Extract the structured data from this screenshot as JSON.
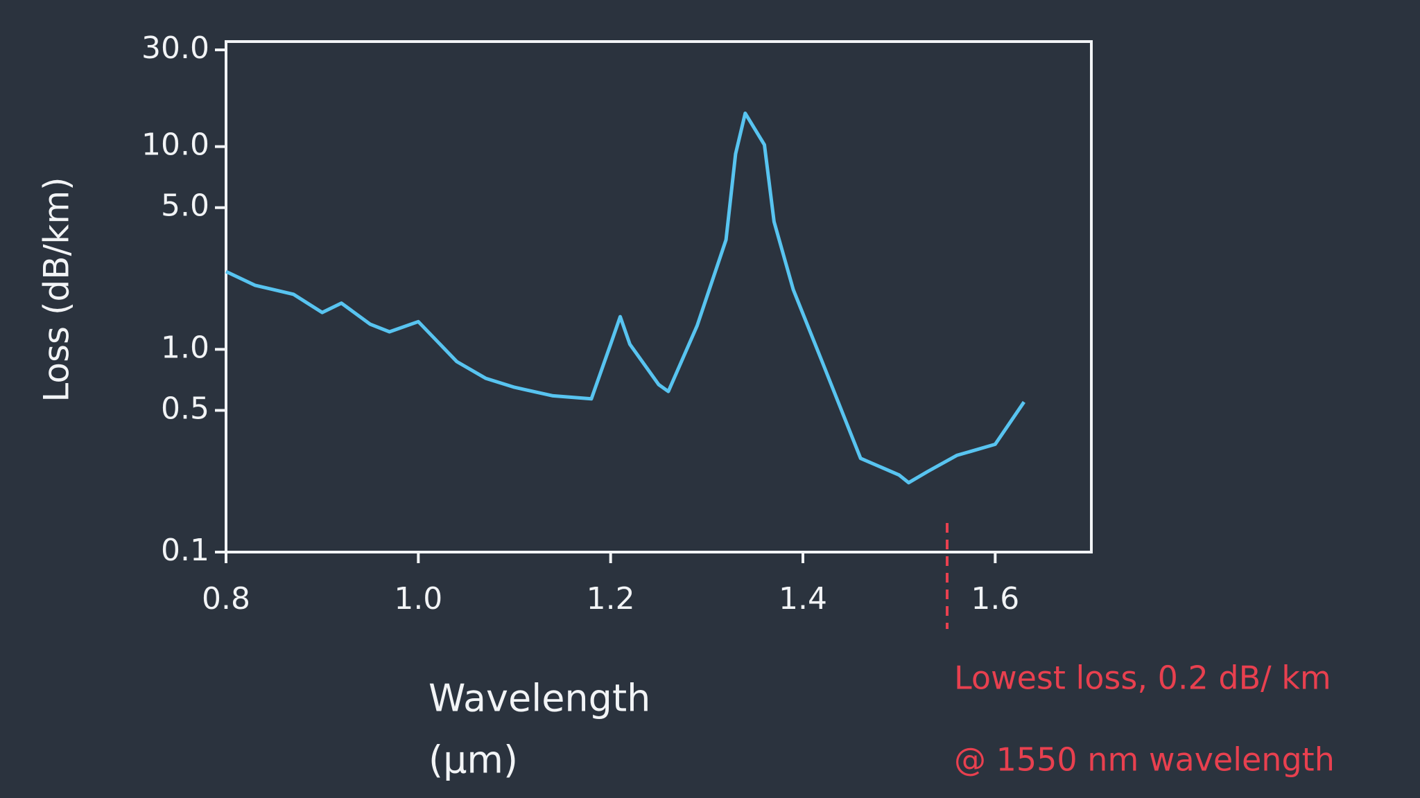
{
  "chart_data": {
    "type": "line",
    "ylabel": "Loss (dB/km)",
    "xlabel": [
      "Wavelength",
      "(µm)"
    ],
    "log_y": true,
    "xlim": [
      0.8,
      1.7
    ],
    "ylim": [
      0.1,
      30
    ],
    "xticks": [
      0.8,
      {
        "value": 1.0,
        "label": "1.0"
      },
      1.2,
      1.4,
      1.6
    ],
    "yticks": [
      0.1,
      0.5,
      {
        "value": 1.0,
        "label": "1.0"
      },
      {
        "value": 5.0,
        "label": "5.0"
      },
      {
        "value": 10.0,
        "label": "10.0"
      },
      {
        "value": 30.0,
        "label": "30.0"
      }
    ],
    "grid": false,
    "color": "#58c4f0",
    "x": [
      0.8,
      0.83,
      0.87,
      0.9,
      0.92,
      0.95,
      0.97,
      1.0,
      1.04,
      1.07,
      1.1,
      1.14,
      1.18,
      1.2,
      1.21,
      1.22,
      1.25,
      1.26,
      1.29,
      1.32,
      1.33,
      1.34,
      1.36,
      1.37,
      1.39,
      1.42,
      1.46,
      1.5,
      1.51,
      1.53,
      1.56,
      1.6,
      1.63
    ],
    "values": [
      2.42,
      2.07,
      1.87,
      1.52,
      1.69,
      1.33,
      1.22,
      1.37,
      0.87,
      0.72,
      0.65,
      0.59,
      0.57,
      1.06,
      1.45,
      1.06,
      0.67,
      0.62,
      1.31,
      3.47,
      9.2,
      14.6,
      10.2,
      4.26,
      1.97,
      0.87,
      0.29,
      0.24,
      0.22,
      0.25,
      0.3,
      0.34,
      0.55
    ],
    "annotation": {
      "x": 1.55,
      "color": "#e8404f",
      "lines": [
        "Lowest loss, 0.2 dB/ km",
        "@ 1550 nm wavelength"
      ]
    }
  }
}
